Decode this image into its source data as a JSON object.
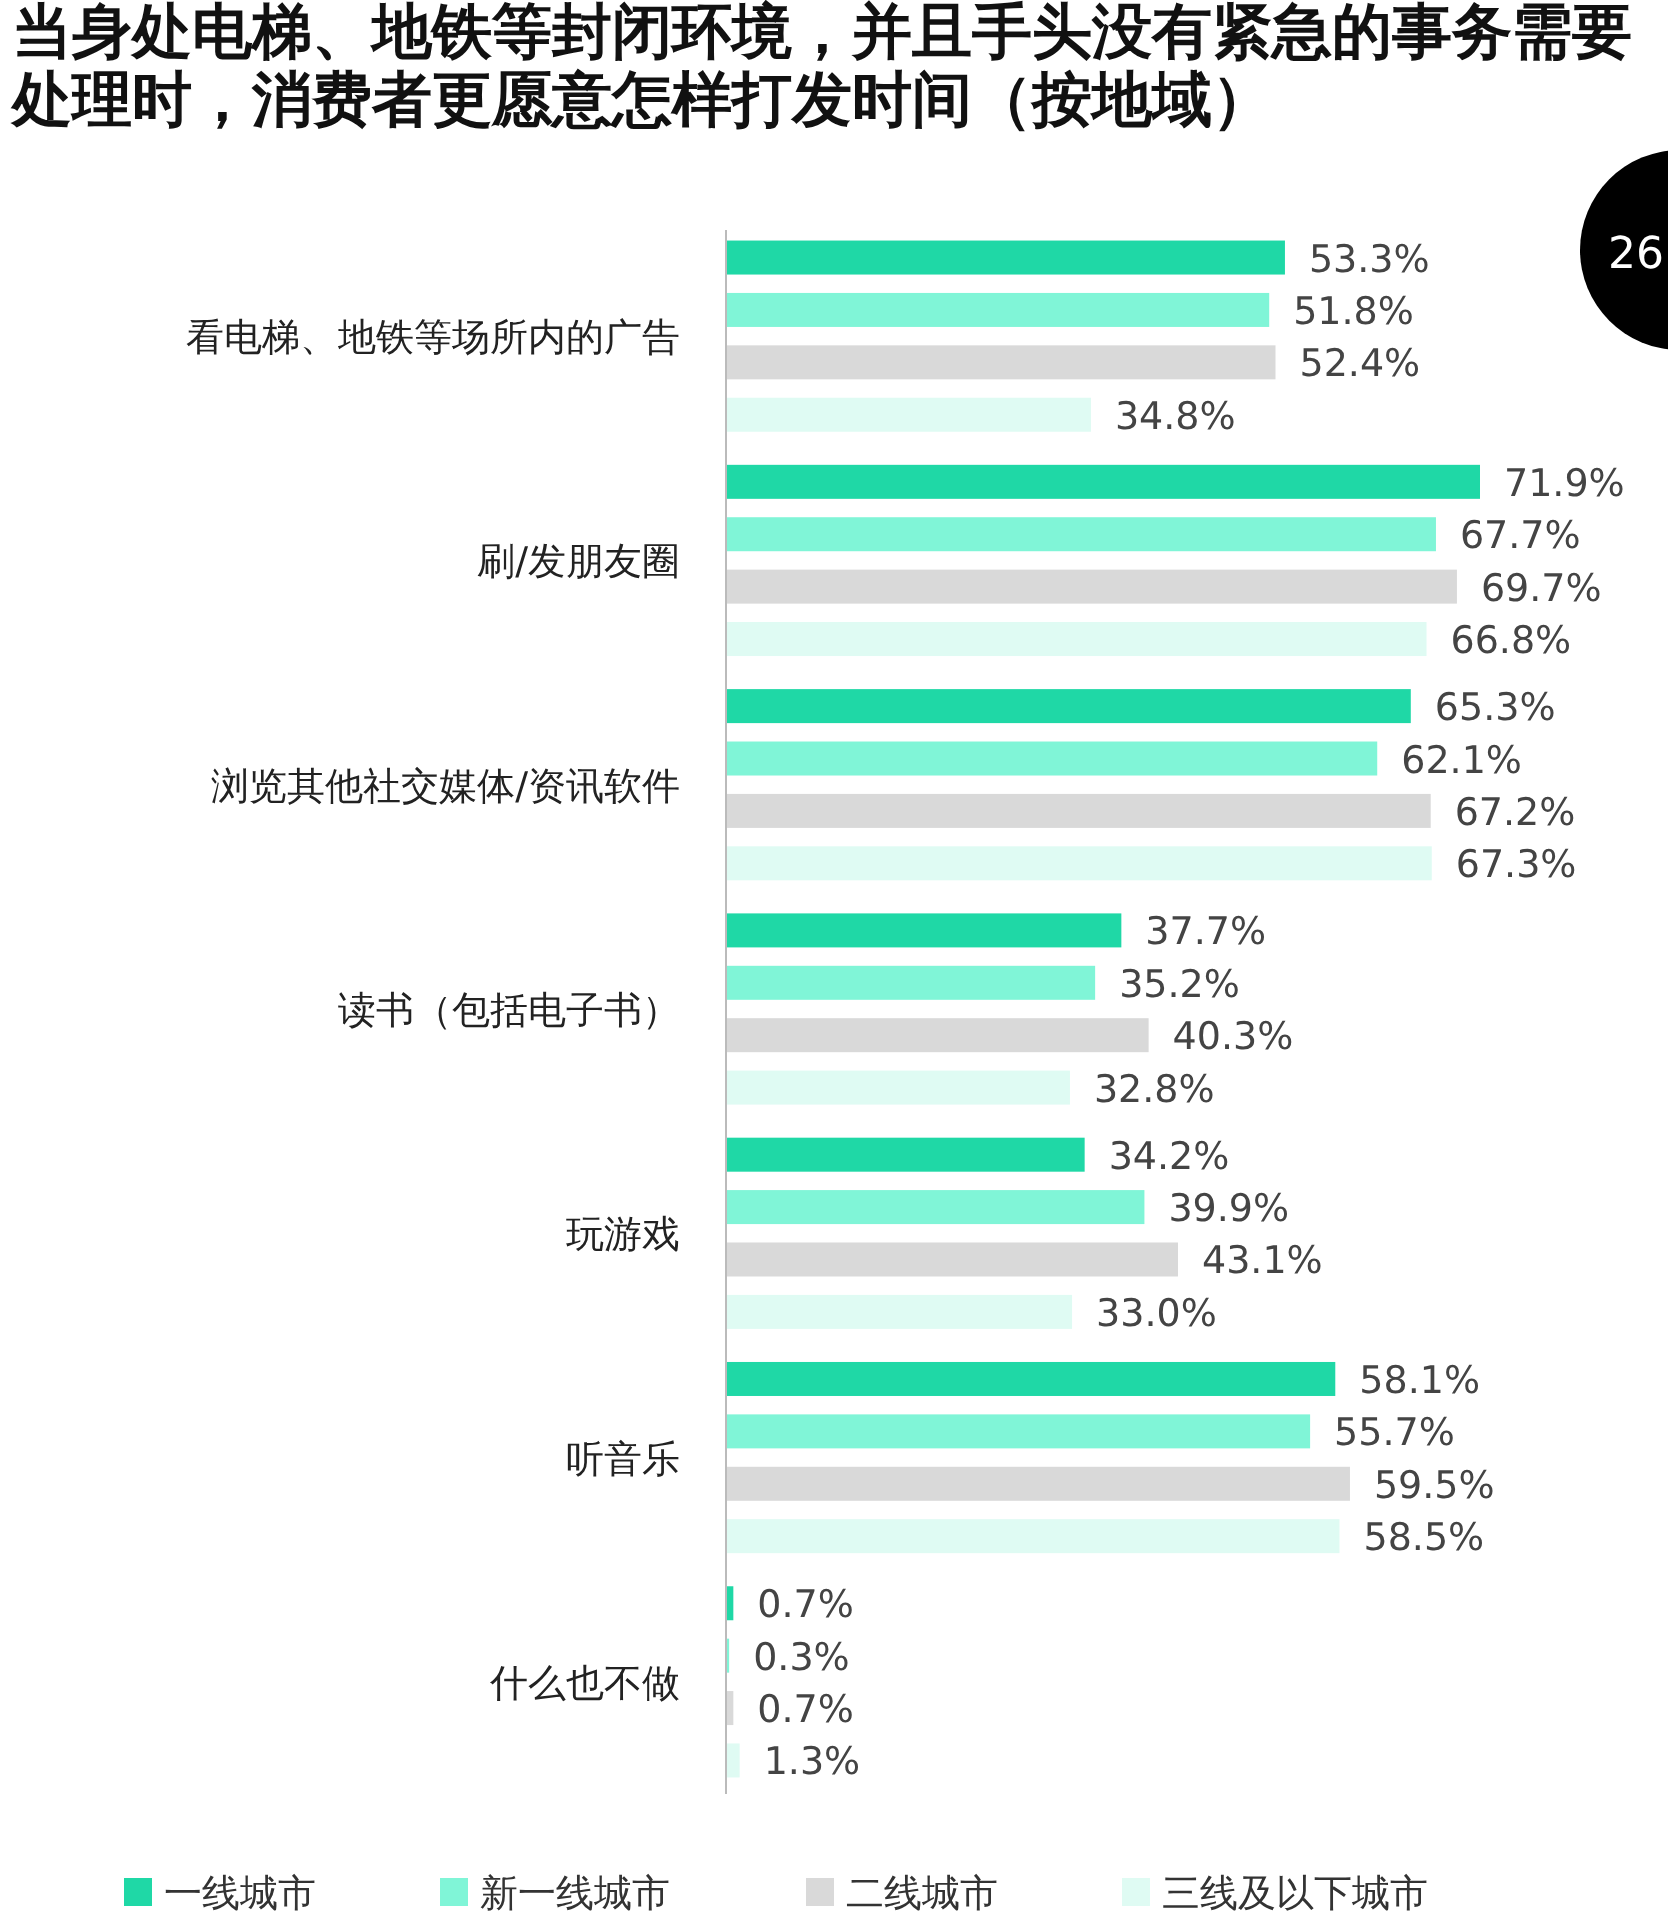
{
  "chart_data": {
    "type": "bar",
    "orientation": "horizontal",
    "title": "当身处电梯、地铁等封闭环境，并且手头没有紧急的事务需要处理时，消费者更愿意怎样打发时间（按地域）",
    "categories": [
      "看电梯、地铁等场所内的广告",
      "刷/发朋友圈",
      "浏览其他社交媒体/资讯软件",
      "读书（包括电子书）",
      "玩游戏",
      "听音乐",
      "什么也不做"
    ],
    "series": [
      {
        "name": "一线城市",
        "color": "#1fd8a6",
        "values": [
          53.3,
          71.9,
          65.3,
          37.7,
          34.2,
          58.1,
          0.7
        ],
        "value_labels": [
          "53.3%",
          "71.9%",
          "65.3%",
          "37.7%",
          "34.2%",
          "58.1%",
          "0.7%"
        ]
      },
      {
        "name": "新一线城市",
        "color": "#80f5d7",
        "values": [
          51.8,
          67.7,
          62.1,
          35.2,
          39.9,
          55.7,
          0.3
        ],
        "value_labels": [
          "51.8%",
          "67.7%",
          "62.1%",
          "35.2%",
          "39.9%",
          "55.7%",
          "0.3%"
        ]
      },
      {
        "name": "二线城市",
        "color": "#d9d9d9",
        "values": [
          52.4,
          69.7,
          67.2,
          40.3,
          43.1,
          59.5,
          0.7
        ],
        "value_labels": [
          "52.4%",
          "69.7%",
          "67.2%",
          "40.3%",
          "43.1%",
          "59.5%",
          "0.7%"
        ]
      },
      {
        "name": "三线及以下城市",
        "color": "#dffbf3",
        "values": [
          34.8,
          66.8,
          67.3,
          32.8,
          33.0,
          58.5,
          1.3
        ],
        "value_labels": [
          "34.8%",
          "66.8%",
          "67.3%",
          "32.8%",
          "33.0%",
          "58.5%",
          "1.3%"
        ]
      }
    ],
    "legend": "bottom",
    "annotations": [
      "26"
    ]
  }
}
